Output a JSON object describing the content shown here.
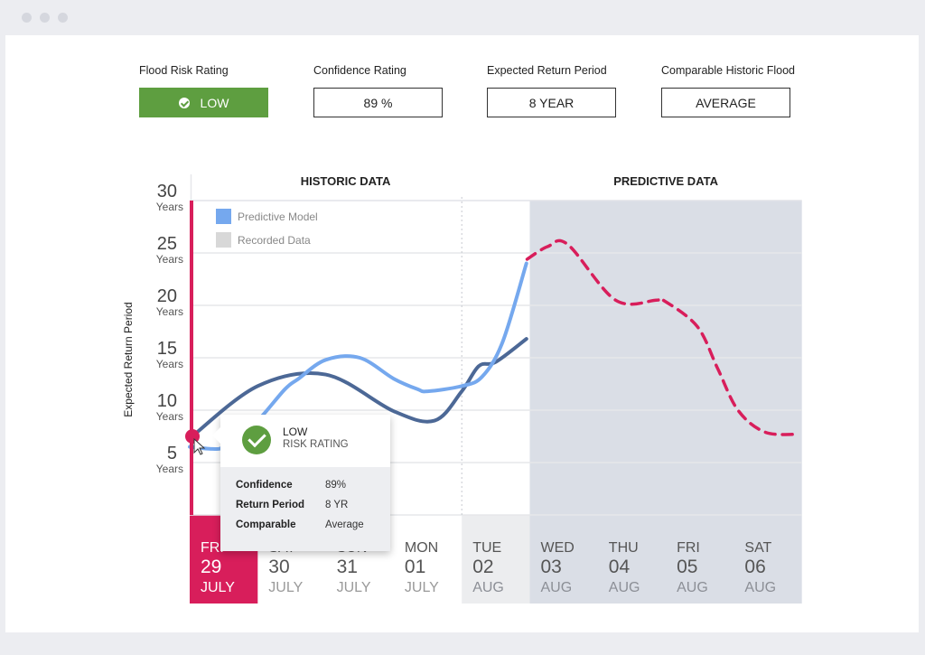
{
  "kpis": [
    {
      "label": "Flood Risk Rating",
      "value": "LOW"
    },
    {
      "label": "Confidence Rating",
      "value": "89 %"
    },
    {
      "label": "Expected Return Period",
      "value": "8 YEAR"
    },
    {
      "label": "Comparable Historic Flood",
      "value": "AVERAGE"
    }
  ],
  "colors": {
    "accent": "#d81e5b",
    "predictive_model": "#75a8ee",
    "recorded_data": "#4c6896",
    "forecast_bg": "#dadee6",
    "low_green": "#5e9e40"
  },
  "tooltip": {
    "title": "LOW",
    "subtitle": "RISK RATING",
    "rows": [
      {
        "key": "Confidence",
        "value": "89%"
      },
      {
        "key": "Return Period",
        "value": "8 YR"
      },
      {
        "key": "Comparable",
        "value": "Average"
      }
    ]
  },
  "chart_data": {
    "type": "line",
    "sections": [
      "HISTORIC DATA",
      "PREDICTIVE DATA"
    ],
    "ylabel": "Expected Return Period",
    "ylim": [
      0,
      30
    ],
    "yticks": [
      {
        "value": 5,
        "label": "5",
        "unit": "Years"
      },
      {
        "value": 10,
        "label": "10",
        "unit": "Years"
      },
      {
        "value": 15,
        "label": "15",
        "unit": "Years"
      },
      {
        "value": 20,
        "label": "20",
        "unit": "Years"
      },
      {
        "value": 25,
        "label": "25",
        "unit": "Years"
      },
      {
        "value": 30,
        "label": "30",
        "unit": "Years"
      }
    ],
    "days": [
      {
        "dow": "FRI",
        "day": "29",
        "month": "JULY",
        "state": "selected"
      },
      {
        "dow": "SAT",
        "day": "30",
        "month": "JULY",
        "state": "past"
      },
      {
        "dow": "SUN",
        "day": "31",
        "month": "JULY",
        "state": "past"
      },
      {
        "dow": "MON",
        "day": "01",
        "month": "JULY",
        "state": "past"
      },
      {
        "dow": "TUE",
        "day": "02",
        "month": "AUG",
        "state": "today"
      },
      {
        "dow": "WED",
        "day": "03",
        "month": "AUG",
        "state": "forecast"
      },
      {
        "dow": "THU",
        "day": "04",
        "month": "AUG",
        "state": "forecast"
      },
      {
        "dow": "FRI",
        "day": "05",
        "month": "AUG",
        "state": "forecast"
      },
      {
        "dow": "SAT",
        "day": "06",
        "month": "AUG",
        "state": "forecast"
      }
    ],
    "legend": [
      "Predictive Model",
      "Recorded Data"
    ],
    "series": [
      {
        "name": "Predictive Model",
        "style": "solid",
        "x": [
          0,
          0.33,
          0.5,
          0.75,
          1,
          1.4,
          1.6,
          2,
          2.5,
          3,
          3.35,
          3.5,
          4,
          4.3,
          4.6,
          4.95
        ],
        "y": [
          6.5,
          6.3,
          6.5,
          8,
          9,
          12,
          13,
          14.8,
          15,
          13,
          12,
          11.8,
          12.3,
          13.2,
          16.5,
          24
        ]
      },
      {
        "name": "Recorded Data",
        "style": "solid",
        "x": [
          0,
          1,
          2,
          3,
          3.6,
          4,
          4.25,
          4.5,
          4.95
        ],
        "y": [
          7.3,
          12.3,
          13.4,
          9.9,
          9,
          11.8,
          14.2,
          14.6,
          16.8
        ]
      },
      {
        "name": "",
        "style": "dashed",
        "x": [
          5,
          5.3,
          5.6,
          6.3,
          6.9,
          7,
          7.5,
          7.8,
          8.1,
          8.5,
          9
        ],
        "y": [
          24.4,
          25.6,
          25.8,
          20.5,
          20.5,
          20.5,
          18,
          14,
          10,
          7.9,
          7.7
        ]
      }
    ]
  }
}
